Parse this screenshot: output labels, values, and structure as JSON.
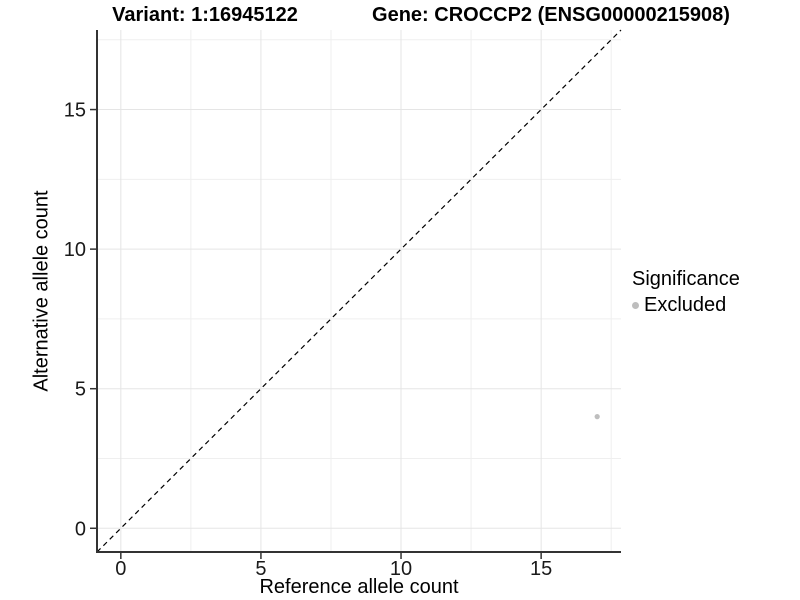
{
  "chart_data": {
    "type": "scatter",
    "title_left": "Variant: 1:16945122",
    "title_right": "Gene: CROCCP2 (ENSG00000215908)",
    "xlabel": "Reference allele count",
    "ylabel": "Alternative allele count",
    "xlim": [
      -0.85,
      17.85
    ],
    "ylim": [
      -0.85,
      17.85
    ],
    "xticks": [
      0,
      5,
      10,
      15
    ],
    "yticks": [
      0,
      5,
      10,
      15
    ],
    "xticks_minor": [
      2.5,
      7.5,
      12.5,
      17.5
    ],
    "yticks_minor": [
      2.5,
      7.5,
      12.5,
      17.5
    ],
    "grid": "major+minor",
    "identity_line": {
      "slope": 1,
      "intercept": 0,
      "style": "dashed",
      "color": "#000000"
    },
    "series": [
      {
        "name": "Excluded",
        "color": "#bebebe",
        "points": [
          {
            "x": 17,
            "y": 4
          }
        ]
      }
    ],
    "legend": {
      "title": "Significance",
      "position": "right",
      "entries": [
        {
          "label": "Excluded",
          "color": "#bebebe"
        }
      ]
    },
    "colors": {
      "axis_line": "#333333",
      "tick": "#333333",
      "grid_major": "#e5e5e5",
      "grid_minor": "#efefef",
      "background": "#ffffff"
    }
  }
}
